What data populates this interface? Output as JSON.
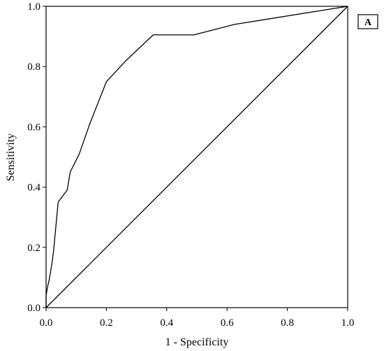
{
  "panel_label": "A",
  "chart_data": {
    "type": "line",
    "title": "",
    "xlabel": "1 - Specificity",
    "ylabel": "Sensitivity",
    "xlim": [
      0.0,
      1.0
    ],
    "ylim": [
      0.0,
      1.0
    ],
    "x_ticks": [
      "0.0",
      "0.2",
      "0.4",
      "0.6",
      "0.8",
      "1.0"
    ],
    "y_ticks": [
      "0.0",
      "0.2",
      "0.4",
      "0.6",
      "0.8",
      "1.0"
    ],
    "grid": false,
    "legend": "none",
    "series": [
      {
        "points": [
          [
            0.0,
            0.0
          ],
          [
            0.0,
            0.04
          ],
          [
            0.005,
            0.07
          ],
          [
            0.01,
            0.09
          ],
          [
            0.015,
            0.12
          ],
          [
            0.02,
            0.15
          ],
          [
            0.025,
            0.19
          ],
          [
            0.04,
            0.35
          ],
          [
            0.07,
            0.39
          ],
          [
            0.08,
            0.45
          ],
          [
            0.11,
            0.51
          ],
          [
            0.145,
            0.61
          ],
          [
            0.2,
            0.75
          ],
          [
            0.265,
            0.82
          ],
          [
            0.355,
            0.905
          ],
          [
            0.49,
            0.905
          ],
          [
            0.625,
            0.94
          ],
          [
            1.0,
            1.0
          ]
        ]
      },
      {
        "points": [
          [
            0.0,
            0.0
          ],
          [
            1.0,
            1.0
          ]
        ]
      }
    ]
  }
}
